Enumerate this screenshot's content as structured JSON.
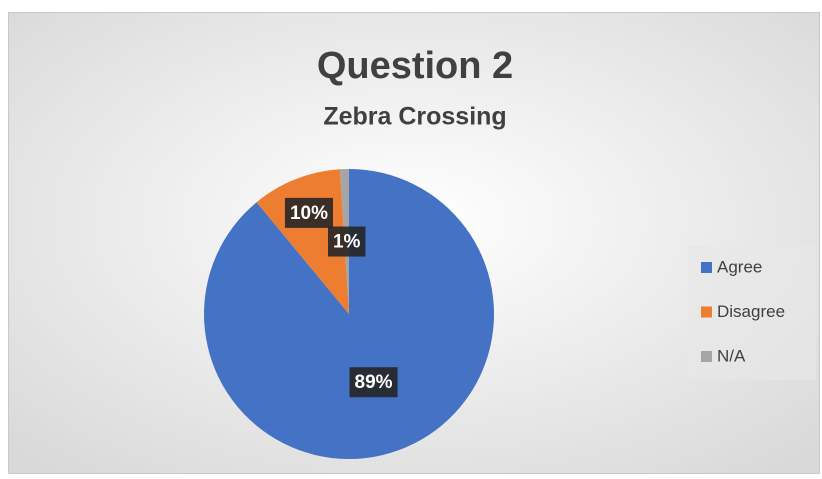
{
  "chart_data": {
    "type": "pie",
    "title": "Question 2",
    "subtitle": "Zebra Crossing",
    "categories": [
      "Agree",
      "Disagree",
      "N/A"
    ],
    "values": [
      89,
      10,
      1
    ],
    "value_labels": [
      "89%",
      "10%",
      "1%"
    ],
    "colors": [
      "#4472c4",
      "#ed7d31",
      "#a5a5a5"
    ],
    "legend": "right"
  }
}
